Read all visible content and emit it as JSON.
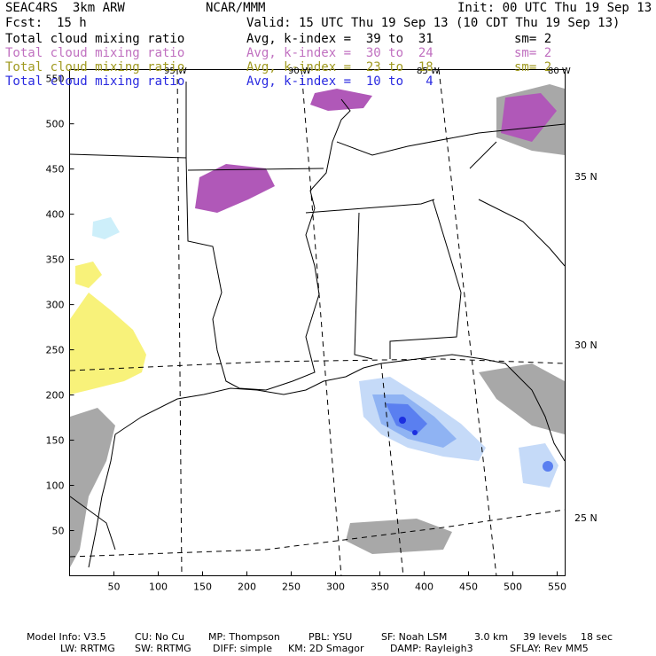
{
  "header": {
    "model": "SEAC4RS  3km ARW",
    "org": "NCAR/MMM",
    "init": "Init: 00 UTC Thu 19 Sep 13",
    "fcst_label": "Fcst:",
    "fcst_value": "15 h",
    "valid": "Valid: 15 UTC Thu 19 Sep 13 (10 CDT Thu 19 Sep 13)"
  },
  "fields": [
    {
      "name": "Total cloud mixing ratio",
      "avg": "Avg, k-index =  39 to  31",
      "sm": "sm= 2",
      "color": "#000000"
    },
    {
      "name": "Total cloud mixing ratio",
      "avg": "Avg, k-index =  30 to  24",
      "sm": "sm= 2",
      "color": "#c070c0"
    },
    {
      "name": "Total cloud mixing ratio",
      "avg": "Avg, k-index =  23 to  18",
      "sm": "sm= 2",
      "color": "#a09a20"
    },
    {
      "name": "Total cloud mixing ratio",
      "avg": "Avg, k-index =  10 to   4",
      "sm": "",
      "color": "#2a2ae0"
    }
  ],
  "axes": {
    "x_ticks": [
      "50",
      "100",
      "150",
      "200",
      "250",
      "300",
      "350",
      "400",
      "450",
      "500",
      "550"
    ],
    "y_ticks": [
      "50",
      "100",
      "150",
      "200",
      "250",
      "300",
      "350",
      "400",
      "450",
      "500",
      "550"
    ]
  },
  "lon_labels": [
    "95 W",
    "90 W",
    "85 W",
    "80 W"
  ],
  "lat_labels": [
    "35 N",
    "30 N",
    "25 N"
  ],
  "footer": {
    "line1": {
      "model_info": "Model Info: V3.5",
      "cu": "CU: No Cu",
      "mp": "MP: Thompson",
      "pbl": "PBL: YSU",
      "sf": "SF: Noah LSM",
      "res": "3.0 km",
      "levels": "39 levels",
      "dt": "18 sec"
    },
    "line2": {
      "lw": "LW: RRTMG",
      "sw": "SW: RRTMG",
      "diff": "DIFF: simple",
      "km": "KM: 2D Smagor",
      "damp": "DAMP: Rayleigh3",
      "sflay": "SFLAY: Rev MM5"
    }
  },
  "colors": {
    "low_cloud": "#a8a8a8",
    "mid_cloud": "#b058b8",
    "high_cloud": "#f8f27a",
    "thick_cloud": "#6a8ff0",
    "cyan_cloud": "#cdeffa"
  }
}
